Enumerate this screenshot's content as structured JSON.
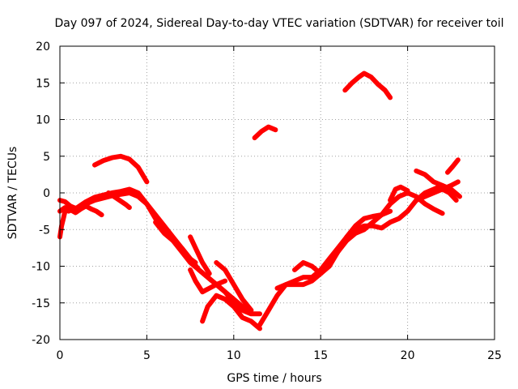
{
  "chart_data": {
    "type": "scatter",
    "title": "Day 097 of 2024, Sidereal Day-to-day VTEC variation (SDTVAR) for receiver toil",
    "xlabel": "GPS time / hours",
    "ylabel": "SDTVAR / TECUs",
    "xlim": [
      0,
      25
    ],
    "ylim": [
      -20,
      20
    ],
    "xticks": [
      0,
      5,
      10,
      15,
      20,
      25
    ],
    "yticks": [
      -20,
      -15,
      -10,
      -5,
      0,
      5,
      10,
      15,
      20
    ],
    "xtick_labels": [
      "0",
      "5",
      "10",
      "15",
      "20",
      "25"
    ],
    "ytick_labels": [
      "-20",
      "-15",
      "-10",
      "-5",
      "0",
      "5",
      "10",
      "15",
      "20"
    ],
    "grid": true,
    "legend": "none",
    "color": "#ff0000",
    "series": [
      {
        "x": [
          0.0,
          0.3,
          0.6,
          0.9,
          1.2,
          1.5,
          1.8,
          2.1,
          2.4
        ],
        "y": [
          -2.5,
          -2.0,
          -2.3,
          -2.7,
          -2.2,
          -1.8,
          -2.2,
          -2.5,
          -3.0
        ]
      },
      {
        "x": [
          0.0,
          0.1,
          0.2,
          0.3
        ],
        "y": [
          -6.0,
          -4.5,
          -3.5,
          -2.5
        ]
      },
      {
        "x": [
          0.0,
          0.3,
          0.6,
          1.0,
          1.5,
          2.0,
          2.5,
          3.0,
          3.5,
          4.0,
          4.5,
          5.0,
          5.5,
          6.0,
          6.5,
          7.0,
          7.5,
          8.0,
          8.5,
          9.0,
          9.5,
          10.0,
          10.5,
          11.0,
          11.5
        ],
        "y": [
          -1.0,
          -1.2,
          -1.8,
          -2.2,
          -1.5,
          -1.0,
          -0.7,
          -0.4,
          -0.2,
          0.0,
          -0.5,
          -1.5,
          -3.0,
          -4.5,
          -6.0,
          -7.5,
          -9.0,
          -10.5,
          -11.5,
          -12.5,
          -13.5,
          -15.0,
          -16.0,
          -16.5,
          -16.5
        ]
      },
      {
        "x": [
          0.5,
          1.0,
          1.5,
          2.0,
          2.5,
          3.0,
          3.5,
          4.0,
          4.5,
          5.0,
          5.5,
          6.0,
          6.5,
          7.0,
          7.5,
          8.0,
          8.5,
          9.0,
          9.5,
          10.0,
          10.5,
          11.0
        ],
        "y": [
          -2.5,
          -2.0,
          -1.2,
          -0.6,
          -0.3,
          0.0,
          0.2,
          0.5,
          0.0,
          -1.5,
          -3.5,
          -5.0,
          -6.5,
          -8.0,
          -9.5,
          -10.5,
          -11.5,
          -12.5,
          -13.5,
          -14.5,
          -15.5,
          -16.0
        ]
      },
      {
        "x": [
          2.0,
          2.5,
          3.0,
          3.5,
          4.0,
          4.5,
          5.0
        ],
        "y": [
          3.8,
          4.4,
          4.8,
          5.0,
          4.6,
          3.5,
          1.5
        ]
      },
      {
        "x": [
          2.8,
          3.3,
          3.8,
          4.0
        ],
        "y": [
          0.0,
          -0.8,
          -1.6,
          -2.0
        ]
      },
      {
        "x": [
          5.5,
          6.0,
          6.5,
          7.0,
          7.5,
          7.8
        ],
        "y": [
          -4.0,
          -5.5,
          -6.5,
          -7.5,
          -9.0,
          -9.5
        ]
      },
      {
        "x": [
          7.5,
          7.8,
          8.2,
          8.6
        ],
        "y": [
          -6.0,
          -7.5,
          -9.5,
          -11.0
        ]
      },
      {
        "x": [
          7.5,
          7.8,
          8.2,
          8.6,
          9.0,
          9.5
        ],
        "y": [
          -10.5,
          -12.0,
          -13.5,
          -13.0,
          -12.5,
          -12.0
        ]
      },
      {
        "x": [
          8.2,
          8.5,
          9.0,
          9.5,
          10.0,
          10.5,
          11.0,
          11.5
        ],
        "y": [
          -17.5,
          -15.5,
          -14.0,
          -14.5,
          -15.5,
          -17.0,
          -17.5,
          -18.5
        ]
      },
      {
        "x": [
          9.0,
          9.5,
          10.0,
          10.5,
          11.0
        ],
        "y": [
          -9.5,
          -10.5,
          -12.5,
          -14.5,
          -16.0
        ]
      },
      {
        "x": [
          11.5,
          12.0,
          12.5,
          13.0,
          13.5,
          14.0,
          14.5,
          15.0,
          15.5,
          16.0,
          16.5,
          17.0,
          17.5,
          18.0,
          18.5,
          19.0,
          19.5,
          20.0,
          20.5,
          21.0,
          21.5,
          22.0
        ],
        "y": [
          -18.0,
          -16.0,
          -14.0,
          -12.5,
          -12.0,
          -11.5,
          -11.5,
          -10.5,
          -9.0,
          -7.5,
          -6.0,
          -5.0,
          -4.5,
          -4.5,
          -4.8,
          -4.0,
          -3.5,
          -2.5,
          -1.0,
          0.0,
          0.5,
          1.0
        ]
      },
      {
        "x": [
          12.5,
          13.0,
          13.5,
          14.0,
          14.5,
          15.0,
          15.5,
          16.0,
          16.5,
          17.0,
          17.5,
          18.0,
          18.5,
          19.0
        ],
        "y": [
          -13.0,
          -12.5,
          -12.5,
          -12.5,
          -12.0,
          -11.0,
          -9.5,
          -8.0,
          -6.5,
          -5.5,
          -5.0,
          -4.0,
          -3.0,
          -2.5
        ]
      },
      {
        "x": [
          13.5,
          14.0,
          14.5,
          15.0,
          15.5,
          16.0,
          16.5,
          17.0,
          17.5,
          18.0,
          18.5,
          19.0,
          19.5,
          20.0,
          20.5,
          21.0,
          21.5,
          22.0
        ],
        "y": [
          -10.5,
          -9.5,
          -10.0,
          -11.0,
          -10.0,
          -8.0,
          -6.0,
          -4.5,
          -3.5,
          -3.2,
          -3.0,
          -1.5,
          -0.5,
          0.0,
          -0.5,
          -1.5,
          -2.2,
          -2.8
        ]
      },
      {
        "x": [
          11.2,
          11.6,
          12.0,
          12.4
        ],
        "y": [
          7.5,
          8.4,
          9.0,
          8.6
        ]
      },
      {
        "x": [
          16.4,
          16.8,
          17.2,
          17.5,
          17.9,
          18.3,
          18.7,
          19.0
        ],
        "y": [
          14.0,
          15.0,
          15.8,
          16.3,
          15.8,
          14.8,
          14.0,
          13.0
        ]
      },
      {
        "x": [
          19.0,
          19.3,
          19.6,
          20.0
        ],
        "y": [
          -1.0,
          0.5,
          0.8,
          0.3
        ]
      },
      {
        "x": [
          20.5,
          21.0,
          21.5,
          22.0,
          22.5,
          23.0
        ],
        "y": [
          3.0,
          2.5,
          1.5,
          1.0,
          0.5,
          -0.5
        ]
      },
      {
        "x": [
          20.5,
          21.0,
          21.5,
          22.0,
          22.5,
          22.9
        ],
        "y": [
          -1.0,
          -0.5,
          0.0,
          0.5,
          1.0,
          1.5
        ]
      },
      {
        "x": [
          22.3,
          22.6,
          22.9
        ],
        "y": [
          2.8,
          3.6,
          4.5
        ]
      },
      {
        "x": [
          22.0,
          22.4,
          22.8
        ],
        "y": [
          0.5,
          0.0,
          -1.0
        ]
      }
    ]
  }
}
